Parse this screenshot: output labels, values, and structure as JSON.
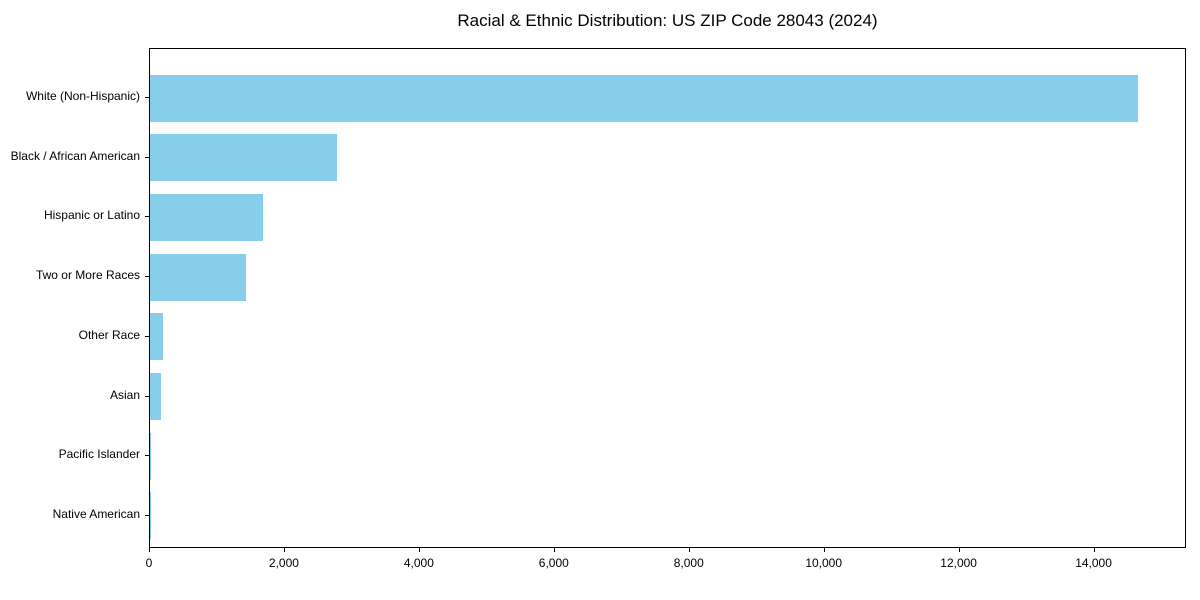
{
  "chart_data": {
    "type": "bar",
    "orientation": "horizontal",
    "title": "Racial & Ethnic Distribution: US ZIP Code 28043 (2024)",
    "categories": [
      "White (Non-Hispanic)",
      "Black / African American",
      "Hispanic or Latino",
      "Two or More Races",
      "Other Race",
      "Asian",
      "Pacific Islander",
      "Native American"
    ],
    "values": [
      14640,
      2770,
      1670,
      1420,
      195,
      170,
      10,
      5
    ],
    "xlabel": "",
    "ylabel": "",
    "xlim": [
      0,
      15370
    ],
    "x_ticks": [
      0,
      2000,
      4000,
      6000,
      8000,
      10000,
      12000,
      14000
    ],
    "x_tick_labels": [
      "0",
      "2,000",
      "4,000",
      "6,000",
      "8,000",
      "10,000",
      "12,000",
      "14,000"
    ],
    "bar_color": "#87CEEB",
    "background_color": "#FFFFFF",
    "spine_color": "#000000",
    "text_color": "#000000",
    "grid": false,
    "legend": null
  }
}
